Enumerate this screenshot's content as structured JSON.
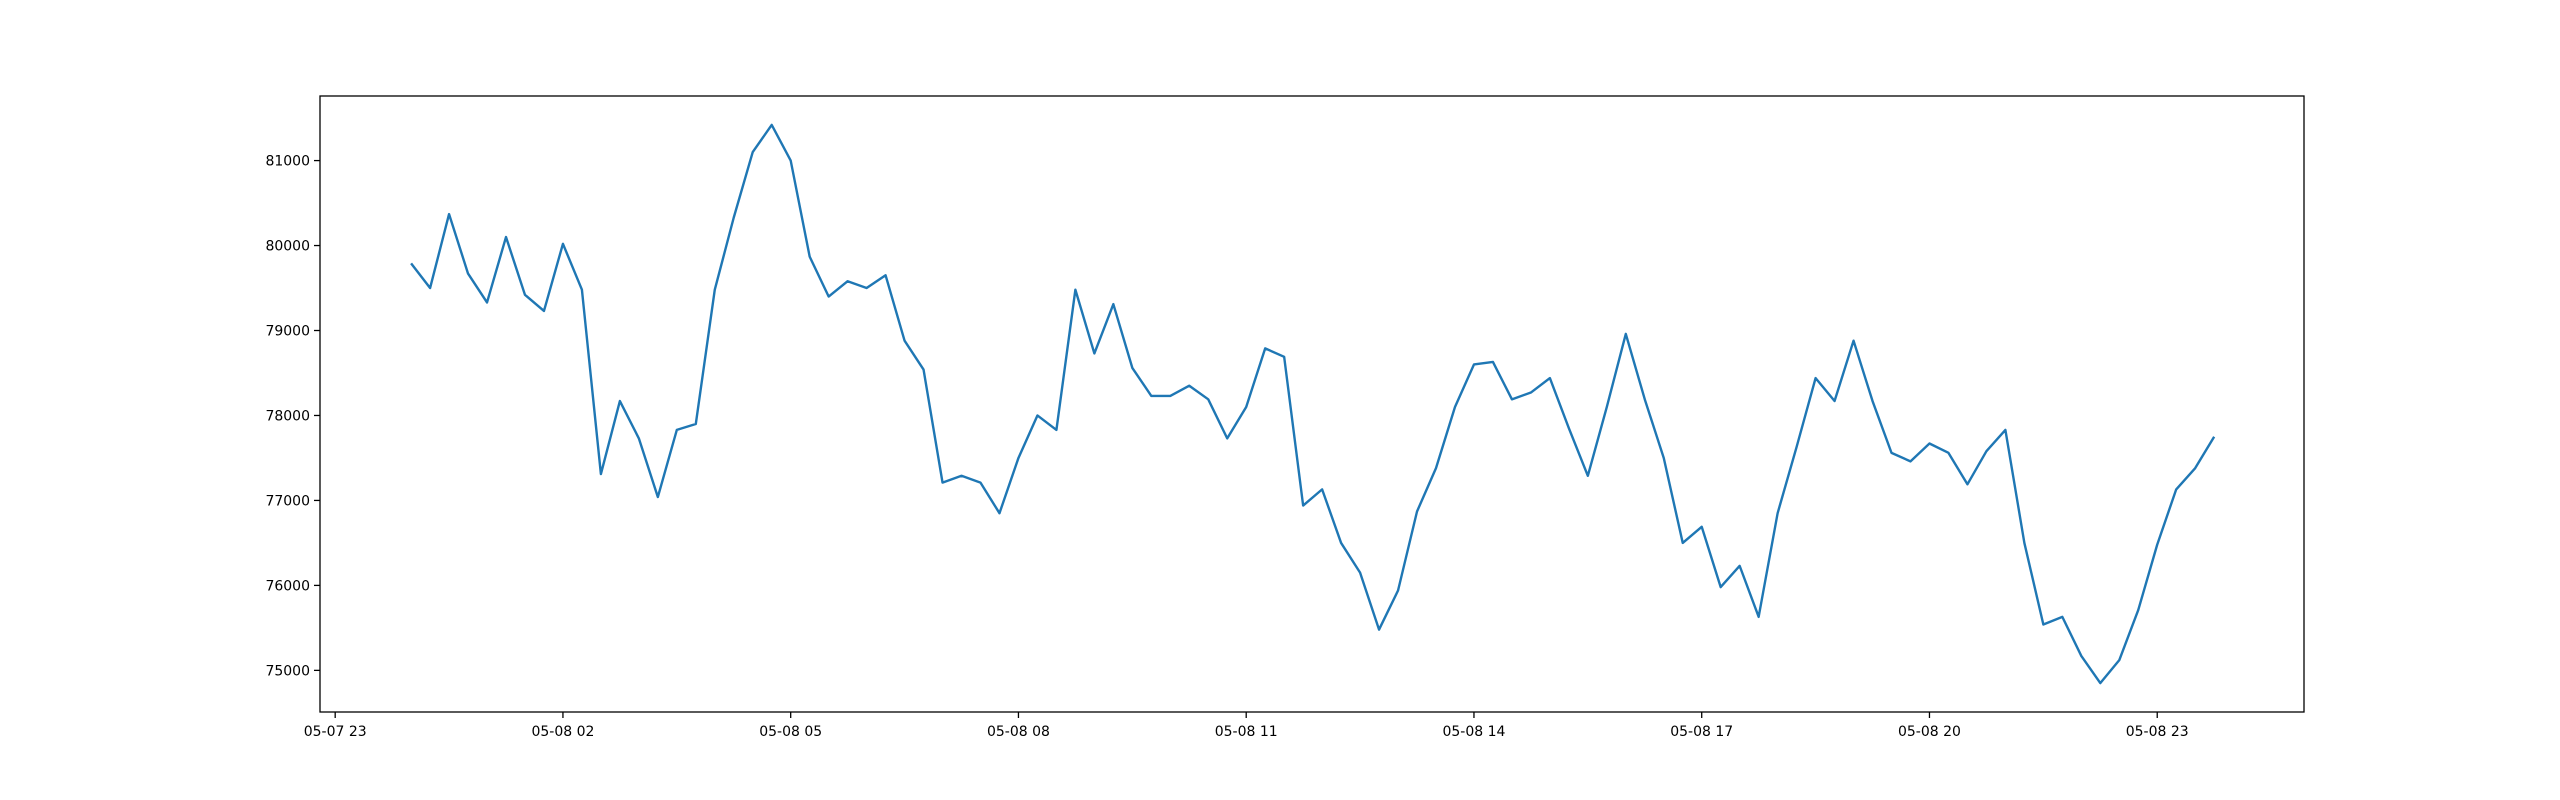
{
  "chart_data": {
    "type": "line",
    "x": [
      "05-08 00:00",
      "05-08 00:15",
      "05-08 00:30",
      "05-08 00:45",
      "05-08 01:00",
      "05-08 01:15",
      "05-08 01:30",
      "05-08 01:45",
      "05-08 02:00",
      "05-08 02:15",
      "05-08 02:30",
      "05-08 02:45",
      "05-08 03:00",
      "05-08 03:15",
      "05-08 03:30",
      "05-08 03:45",
      "05-08 04:00",
      "05-08 04:15",
      "05-08 04:30",
      "05-08 04:45",
      "05-08 05:00",
      "05-08 05:15",
      "05-08 05:30",
      "05-08 05:45",
      "05-08 06:00",
      "05-08 06:15",
      "05-08 06:30",
      "05-08 06:45",
      "05-08 07:00",
      "05-08 07:15",
      "05-08 07:30",
      "05-08 07:45",
      "05-08 08:00",
      "05-08 08:15",
      "05-08 08:30",
      "05-08 08:45",
      "05-08 09:00",
      "05-08 09:15",
      "05-08 09:30",
      "05-08 09:45",
      "05-08 10:00",
      "05-08 10:15",
      "05-08 10:30",
      "05-08 10:45",
      "05-08 11:00",
      "05-08 11:15",
      "05-08 11:30",
      "05-08 11:45",
      "05-08 12:00",
      "05-08 12:15",
      "05-08 12:30",
      "05-08 12:45",
      "05-08 13:00",
      "05-08 13:15",
      "05-08 13:30",
      "05-08 13:45",
      "05-08 14:00",
      "05-08 14:15",
      "05-08 14:30",
      "05-08 14:45",
      "05-08 15:00",
      "05-08 15:15",
      "05-08 15:30",
      "05-08 15:45",
      "05-08 16:00",
      "05-08 16:15",
      "05-08 16:30",
      "05-08 16:45",
      "05-08 17:00",
      "05-08 17:15",
      "05-08 17:30",
      "05-08 17:45",
      "05-08 18:00",
      "05-08 18:15",
      "05-08 18:30",
      "05-08 18:45",
      "05-08 19:00",
      "05-08 19:15",
      "05-08 19:30",
      "05-08 19:45",
      "05-08 20:00",
      "05-08 20:15",
      "05-08 20:30",
      "05-08 20:45",
      "05-08 21:00",
      "05-08 21:15",
      "05-08 21:30",
      "05-08 21:45",
      "05-08 22:00",
      "05-08 22:15",
      "05-08 22:30",
      "05-08 22:45",
      "05-08 23:00",
      "05-08 23:15",
      "05-08 23:30",
      "05-08 23:45"
    ],
    "values": [
      79790,
      79500,
      80370,
      79670,
      79330,
      80100,
      79420,
      79230,
      80020,
      79480,
      77310,
      78170,
      77730,
      77040,
      77830,
      77900,
      79480,
      80330,
      81100,
      81420,
      81000,
      79870,
      79400,
      79580,
      79500,
      79650,
      78880,
      78540,
      77210,
      77290,
      77210,
      76850,
      77500,
      78000,
      77830,
      79480,
      78730,
      79310,
      78560,
      78230,
      78230,
      78350,
      78190,
      77730,
      78100,
      78790,
      78690,
      76940,
      77130,
      76500,
      76150,
      75480,
      75940,
      76870,
      77380,
      78100,
      78600,
      78630,
      78190,
      78270,
      78440,
      77850,
      77290,
      78100,
      78960,
      78190,
      77500,
      76500,
      76690,
      75980,
      76230,
      75630,
      76850,
      77630,
      78440,
      78170,
      78880,
      78170,
      77560,
      77460,
      77670,
      77560,
      77190,
      77580,
      77830,
      76500,
      75540,
      75630,
      75170,
      74850,
      75120,
      75710,
      76480,
      77130,
      77380,
      77750
    ],
    "color": "#1f77b4",
    "xlim": [
      "05-07 22:48",
      "05-09 00:56"
    ],
    "xticks": [
      "05-07 23",
      "05-08 02",
      "05-08 05",
      "05-08 08",
      "05-08 11",
      "05-08 14",
      "05-08 17",
      "05-08 20",
      "05-08 23"
    ],
    "ylim": [
      74510,
      81760
    ],
    "yticks": [
      75000,
      76000,
      77000,
      78000,
      79000,
      80000,
      81000
    ]
  }
}
